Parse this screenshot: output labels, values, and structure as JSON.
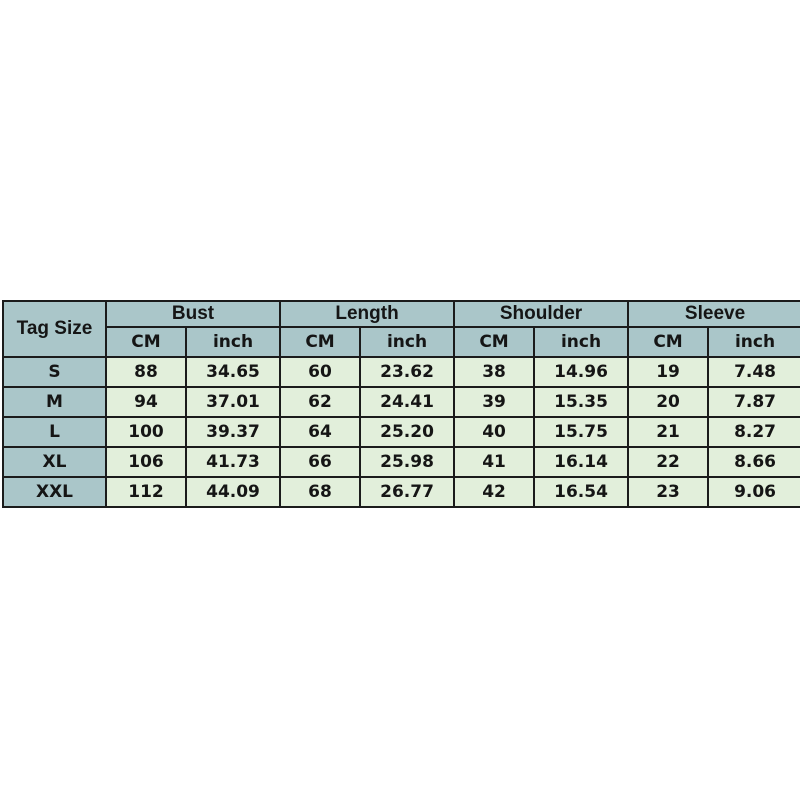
{
  "page": {
    "background_color": "#ffffff"
  },
  "table": {
    "corner_label": "Tag Size",
    "groups": [
      {
        "label": "Bust"
      },
      {
        "label": "Length"
      },
      {
        "label": "Shoulder"
      },
      {
        "label": "Sleeve"
      }
    ],
    "subheaders": [
      "CM",
      "inch"
    ],
    "rows": [
      {
        "size": "S",
        "values": [
          "88",
          "34.65",
          "60",
          "23.62",
          "38",
          "14.96",
          "19",
          "7.48"
        ]
      },
      {
        "size": "M",
        "values": [
          "94",
          "37.01",
          "62",
          "24.41",
          "39",
          "15.35",
          "20",
          "7.87"
        ]
      },
      {
        "size": "L",
        "values": [
          "100",
          "39.37",
          "64",
          "25.20",
          "40",
          "15.75",
          "21",
          "8.27"
        ]
      },
      {
        "size": "XL",
        "values": [
          "106",
          "41.73",
          "66",
          "25.98",
          "41",
          "16.14",
          "22",
          "8.66"
        ]
      },
      {
        "size": "XXL",
        "values": [
          "112",
          "44.09",
          "68",
          "26.77",
          "42",
          "16.54",
          "23",
          "9.06"
        ]
      }
    ],
    "colors": {
      "header_bg": "#aac6c9",
      "cell_bg": "#e2efdb",
      "border": "#1b1b1b",
      "text": "#151515"
    }
  },
  "chart_data": {
    "type": "table",
    "columns": [
      "Tag Size",
      "Bust CM",
      "Bust inch",
      "Length CM",
      "Length inch",
      "Shoulder CM",
      "Shoulder inch",
      "Sleeve CM",
      "Sleeve inch"
    ],
    "rows": [
      [
        "S",
        88,
        34.65,
        60,
        23.62,
        38,
        14.96,
        19,
        7.48
      ],
      [
        "M",
        94,
        37.01,
        62,
        24.41,
        39,
        15.35,
        20,
        7.87
      ],
      [
        "L",
        100,
        39.37,
        64,
        25.2,
        40,
        15.75,
        21,
        8.27
      ],
      [
        "XL",
        106,
        41.73,
        66,
        25.98,
        41,
        16.14,
        22,
        8.66
      ],
      [
        "XXL",
        112,
        44.09,
        68,
        26.77,
        42,
        16.54,
        23,
        9.06
      ]
    ]
  }
}
